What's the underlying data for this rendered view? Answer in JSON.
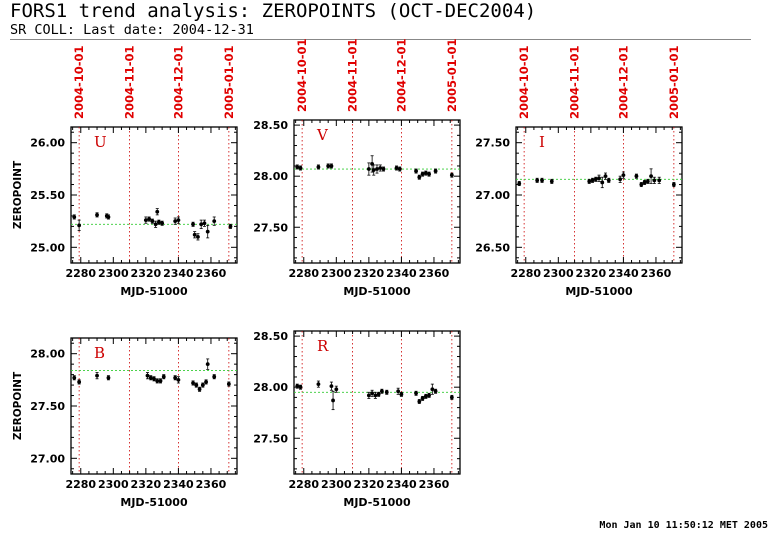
{
  "title": "FORS1 trend analysis: ZEROPOINTS (OCT-DEC2004)",
  "subtitle": "SR COLL: Last date: 2004-12-31",
  "footer": "Mon Jan 10 11:50:12 MET 2005",
  "colors": {
    "axis": "#000000",
    "marker": "#000000",
    "date_line": "#cc0000",
    "date_label": "#e00000",
    "reference": "#33cc33",
    "band_label": "#cc0000"
  },
  "chart_data": [
    {
      "type": "scatter",
      "band": "U",
      "xlabel": "MJD-51000",
      "ylabel": "ZEROPOINT",
      "xlim": [
        2274,
        2376
      ],
      "ylim": [
        24.85,
        26.15
      ],
      "xticks": [
        2280,
        2300,
        2320,
        2340,
        2360
      ],
      "xtick_labels": [
        "2280",
        "2300",
        "2320",
        "2340",
        "2360"
      ],
      "yticks": [
        25.0,
        25.5,
        26.0
      ],
      "ytick_labels": [
        "25.00",
        "25.50",
        "26.00"
      ],
      "date_lines": [
        {
          "x": 2279,
          "label": "2004-10-01"
        },
        {
          "x": 2310,
          "label": "2004-11-01"
        },
        {
          "x": 2340,
          "label": "2004-12-01"
        },
        {
          "x": 2371,
          "label": "2005-01-01"
        }
      ],
      "reference": 25.22,
      "points": [
        {
          "x": 2276,
          "y": 25.29,
          "err": 0.02
        },
        {
          "x": 2279,
          "y": 25.21,
          "err": 0.05
        },
        {
          "x": 2290,
          "y": 25.31,
          "err": 0.02
        },
        {
          "x": 2296,
          "y": 25.3,
          "err": 0.02
        },
        {
          "x": 2297,
          "y": 25.29,
          "err": 0.02
        },
        {
          "x": 2320,
          "y": 25.26,
          "err": 0.03
        },
        {
          "x": 2322,
          "y": 25.27,
          "err": 0.02
        },
        {
          "x": 2324,
          "y": 25.25,
          "err": 0.02
        },
        {
          "x": 2326,
          "y": 25.22,
          "err": 0.03
        },
        {
          "x": 2327,
          "y": 25.34,
          "err": 0.03
        },
        {
          "x": 2328,
          "y": 25.24,
          "err": 0.02
        },
        {
          "x": 2330,
          "y": 25.23,
          "err": 0.02
        },
        {
          "x": 2338,
          "y": 25.25,
          "err": 0.03
        },
        {
          "x": 2340,
          "y": 25.26,
          "err": 0.03
        },
        {
          "x": 2349,
          "y": 25.22,
          "err": 0.02
        },
        {
          "x": 2350,
          "y": 25.12,
          "err": 0.03
        },
        {
          "x": 2352,
          "y": 25.1,
          "err": 0.03
        },
        {
          "x": 2354,
          "y": 25.22,
          "err": 0.04
        },
        {
          "x": 2356,
          "y": 25.23,
          "err": 0.03
        },
        {
          "x": 2358,
          "y": 25.15,
          "err": 0.06
        },
        {
          "x": 2362,
          "y": 25.25,
          "err": 0.04
        },
        {
          "x": 2372,
          "y": 25.2,
          "err": 0.02
        }
      ]
    },
    {
      "type": "scatter",
      "band": "V",
      "xlabel": "MJD-51000",
      "ylabel": "",
      "xlim": [
        2274,
        2376
      ],
      "ylim": [
        27.15,
        28.55
      ],
      "xticks": [
        2280,
        2300,
        2320,
        2340,
        2360
      ],
      "xtick_labels": [
        "2280",
        "2300",
        "2320",
        "2340",
        "2360"
      ],
      "yticks": [
        27.5,
        28.0,
        28.5
      ],
      "ytick_labels": [
        "27.50",
        "28.00",
        "28.50"
      ],
      "date_lines": [
        {
          "x": 2279,
          "label": "2004-10-01"
        },
        {
          "x": 2310,
          "label": "2004-11-01"
        },
        {
          "x": 2340,
          "label": "2004-12-01"
        },
        {
          "x": 2371,
          "label": "2005-01-01"
        }
      ],
      "reference": 28.07,
      "points": [
        {
          "x": 2276,
          "y": 28.09,
          "err": 0.02
        },
        {
          "x": 2278,
          "y": 28.08,
          "err": 0.02
        },
        {
          "x": 2289,
          "y": 28.09,
          "err": 0.02
        },
        {
          "x": 2295,
          "y": 28.1,
          "err": 0.02
        },
        {
          "x": 2297,
          "y": 28.1,
          "err": 0.02
        },
        {
          "x": 2320,
          "y": 28.07,
          "err": 0.06
        },
        {
          "x": 2322,
          "y": 28.12,
          "err": 0.08
        },
        {
          "x": 2323,
          "y": 28.06,
          "err": 0.05
        },
        {
          "x": 2325,
          "y": 28.07,
          "err": 0.04
        },
        {
          "x": 2327,
          "y": 28.08,
          "err": 0.03
        },
        {
          "x": 2329,
          "y": 28.07,
          "err": 0.02
        },
        {
          "x": 2337,
          "y": 28.08,
          "err": 0.02
        },
        {
          "x": 2339,
          "y": 28.07,
          "err": 0.02
        },
        {
          "x": 2349,
          "y": 28.05,
          "err": 0.02
        },
        {
          "x": 2351,
          "y": 27.99,
          "err": 0.02
        },
        {
          "x": 2353,
          "y": 28.02,
          "err": 0.02
        },
        {
          "x": 2355,
          "y": 28.03,
          "err": 0.02
        },
        {
          "x": 2357,
          "y": 28.02,
          "err": 0.02
        },
        {
          "x": 2361,
          "y": 28.05,
          "err": 0.02
        },
        {
          "x": 2371,
          "y": 28.01,
          "err": 0.02
        }
      ]
    },
    {
      "type": "scatter",
      "band": "I",
      "xlabel": "MJD-51000",
      "ylabel": "",
      "xlim": [
        2274,
        2376
      ],
      "ylim": [
        26.35,
        27.65
      ],
      "xticks": [
        2280,
        2300,
        2320,
        2340,
        2360
      ],
      "xtick_labels": [
        "2280",
        "2300",
        "2320",
        "2340",
        "2360"
      ],
      "yticks": [
        26.5,
        27.0,
        27.5
      ],
      "ytick_labels": [
        "26.50",
        "27.00",
        "27.50"
      ],
      "date_lines": [
        {
          "x": 2279,
          "label": "2004-10-01"
        },
        {
          "x": 2310,
          "label": "2004-11-01"
        },
        {
          "x": 2340,
          "label": "2004-12-01"
        },
        {
          "x": 2371,
          "label": "2005-01-01"
        }
      ],
      "reference": 27.15,
      "points": [
        {
          "x": 2276,
          "y": 27.11,
          "err": 0.02
        },
        {
          "x": 2287,
          "y": 27.14,
          "err": 0.02
        },
        {
          "x": 2290,
          "y": 27.14,
          "err": 0.02
        },
        {
          "x": 2296,
          "y": 27.13,
          "err": 0.02
        },
        {
          "x": 2319,
          "y": 27.13,
          "err": 0.02
        },
        {
          "x": 2321,
          "y": 27.14,
          "err": 0.02
        },
        {
          "x": 2323,
          "y": 27.15,
          "err": 0.02
        },
        {
          "x": 2325,
          "y": 27.16,
          "err": 0.03
        },
        {
          "x": 2327,
          "y": 27.12,
          "err": 0.05
        },
        {
          "x": 2329,
          "y": 27.18,
          "err": 0.03
        },
        {
          "x": 2331,
          "y": 27.14,
          "err": 0.02
        },
        {
          "x": 2338,
          "y": 27.15,
          "err": 0.03
        },
        {
          "x": 2340,
          "y": 27.19,
          "err": 0.03
        },
        {
          "x": 2348,
          "y": 27.18,
          "err": 0.02
        },
        {
          "x": 2351,
          "y": 27.1,
          "err": 0.02
        },
        {
          "x": 2353,
          "y": 27.12,
          "err": 0.02
        },
        {
          "x": 2355,
          "y": 27.13,
          "err": 0.02
        },
        {
          "x": 2357,
          "y": 27.18,
          "err": 0.07
        },
        {
          "x": 2359,
          "y": 27.14,
          "err": 0.03
        },
        {
          "x": 2362,
          "y": 27.14,
          "err": 0.03
        },
        {
          "x": 2371,
          "y": 27.1,
          "err": 0.02
        }
      ]
    },
    {
      "type": "scatter",
      "band": "B",
      "xlabel": "MJD-51000",
      "ylabel": "ZEROPOINT",
      "xlim": [
        2274,
        2376
      ],
      "ylim": [
        26.85,
        28.15
      ],
      "xticks": [
        2280,
        2300,
        2320,
        2340,
        2360
      ],
      "xtick_labels": [
        "2280",
        "2300",
        "2320",
        "2340",
        "2360"
      ],
      "yticks": [
        27.0,
        27.5,
        28.0
      ],
      "ytick_labels": [
        "27.00",
        "27.50",
        "28.00"
      ],
      "date_lines": [
        {
          "x": 2279,
          "label": ""
        },
        {
          "x": 2310,
          "label": ""
        },
        {
          "x": 2340,
          "label": ""
        },
        {
          "x": 2371,
          "label": ""
        }
      ],
      "reference": 27.84,
      "points": [
        {
          "x": 2276,
          "y": 27.77,
          "err": 0.02
        },
        {
          "x": 2279,
          "y": 27.73,
          "err": 0.02
        },
        {
          "x": 2290,
          "y": 27.79,
          "err": 0.03
        },
        {
          "x": 2297,
          "y": 27.77,
          "err": 0.02
        },
        {
          "x": 2321,
          "y": 27.79,
          "err": 0.03
        },
        {
          "x": 2323,
          "y": 27.77,
          "err": 0.02
        },
        {
          "x": 2325,
          "y": 27.76,
          "err": 0.02
        },
        {
          "x": 2327,
          "y": 27.74,
          "err": 0.02
        },
        {
          "x": 2329,
          "y": 27.74,
          "err": 0.02
        },
        {
          "x": 2331,
          "y": 27.78,
          "err": 0.02
        },
        {
          "x": 2338,
          "y": 27.77,
          "err": 0.02
        },
        {
          "x": 2340,
          "y": 27.75,
          "err": 0.03
        },
        {
          "x": 2349,
          "y": 27.72,
          "err": 0.02
        },
        {
          "x": 2351,
          "y": 27.7,
          "err": 0.02
        },
        {
          "x": 2353,
          "y": 27.66,
          "err": 0.02
        },
        {
          "x": 2355,
          "y": 27.7,
          "err": 0.02
        },
        {
          "x": 2357,
          "y": 27.73,
          "err": 0.02
        },
        {
          "x": 2358,
          "y": 27.9,
          "err": 0.05
        },
        {
          "x": 2362,
          "y": 27.78,
          "err": 0.02
        },
        {
          "x": 2371,
          "y": 27.71,
          "err": 0.02
        }
      ]
    },
    {
      "type": "scatter",
      "band": "R",
      "xlabel": "MJD-51000",
      "ylabel": "",
      "xlim": [
        2274,
        2376
      ],
      "ylim": [
        27.15,
        28.55
      ],
      "xticks": [
        2280,
        2300,
        2320,
        2340,
        2360
      ],
      "xtick_labels": [
        "2280",
        "2300",
        "2320",
        "2340",
        "2360"
      ],
      "yticks": [
        27.5,
        28.0,
        28.5
      ],
      "ytick_labels": [
        "27.50",
        "28.00",
        "28.50"
      ],
      "date_lines": [
        {
          "x": 2279,
          "label": ""
        },
        {
          "x": 2310,
          "label": ""
        },
        {
          "x": 2340,
          "label": ""
        },
        {
          "x": 2371,
          "label": ""
        }
      ],
      "reference": 27.95,
      "points": [
        {
          "x": 2276,
          "y": 28.01,
          "err": 0.02
        },
        {
          "x": 2278,
          "y": 28.0,
          "err": 0.02
        },
        {
          "x": 2289,
          "y": 28.03,
          "err": 0.03
        },
        {
          "x": 2297,
          "y": 28.01,
          "err": 0.04
        },
        {
          "x": 2298,
          "y": 27.87,
          "err": 0.09
        },
        {
          "x": 2300,
          "y": 27.98,
          "err": 0.03
        },
        {
          "x": 2320,
          "y": 27.92,
          "err": 0.03
        },
        {
          "x": 2322,
          "y": 27.94,
          "err": 0.03
        },
        {
          "x": 2324,
          "y": 27.92,
          "err": 0.03
        },
        {
          "x": 2326,
          "y": 27.93,
          "err": 0.02
        },
        {
          "x": 2328,
          "y": 27.96,
          "err": 0.02
        },
        {
          "x": 2331,
          "y": 27.95,
          "err": 0.02
        },
        {
          "x": 2338,
          "y": 27.96,
          "err": 0.03
        },
        {
          "x": 2340,
          "y": 27.93,
          "err": 0.02
        },
        {
          "x": 2349,
          "y": 27.94,
          "err": 0.02
        },
        {
          "x": 2351,
          "y": 27.86,
          "err": 0.02
        },
        {
          "x": 2353,
          "y": 27.89,
          "err": 0.02
        },
        {
          "x": 2355,
          "y": 27.91,
          "err": 0.02
        },
        {
          "x": 2357,
          "y": 27.92,
          "err": 0.02
        },
        {
          "x": 2359,
          "y": 27.98,
          "err": 0.05
        },
        {
          "x": 2361,
          "y": 27.96,
          "err": 0.02
        },
        {
          "x": 2371,
          "y": 27.9,
          "err": 0.02
        }
      ]
    }
  ]
}
